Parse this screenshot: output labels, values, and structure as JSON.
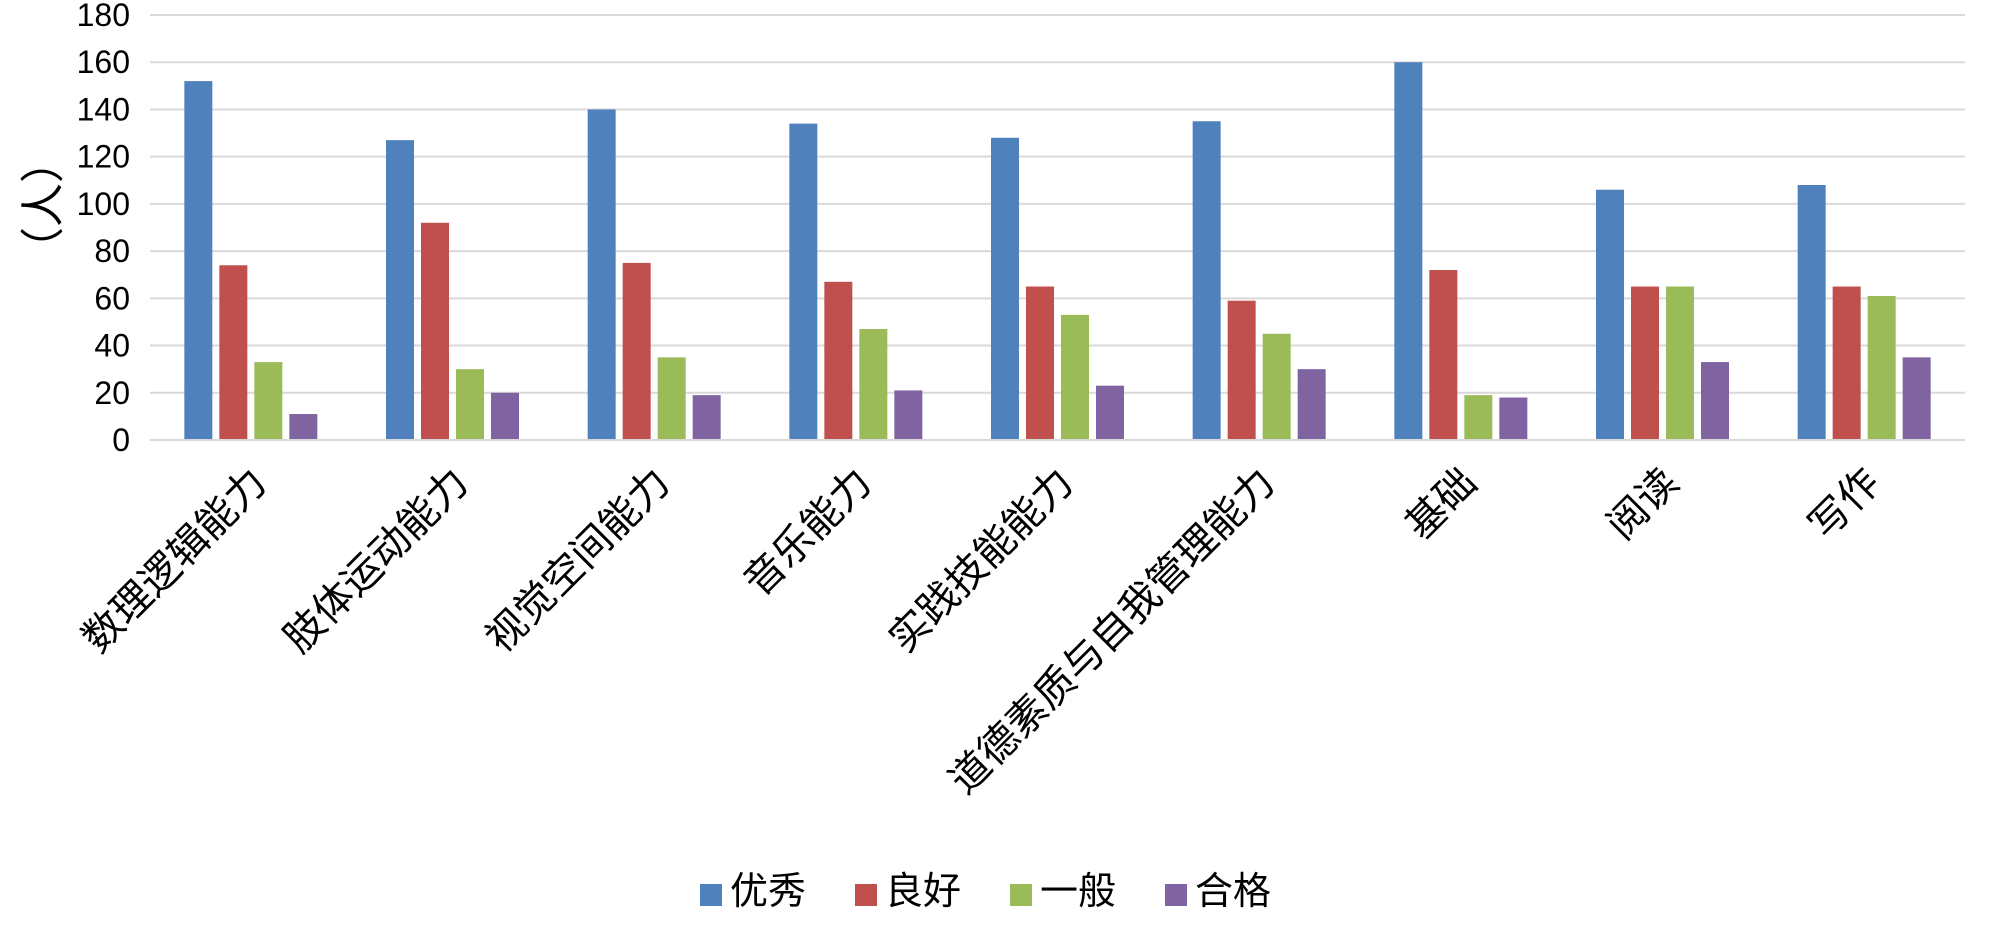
{
  "chart_data": {
    "type": "bar",
    "title": "",
    "xlabel": "",
    "ylabel": "（人）",
    "ylim": [
      0,
      180
    ],
    "ytick_step": 20,
    "grid": true,
    "legend_position": "bottom",
    "categories": [
      "数理逻辑能力",
      "肢体运动能力",
      "视觉空间能力",
      "音乐能力",
      "实践技能能力",
      "道德素质与自我管理能力",
      "基础",
      "阅读",
      "写作"
    ],
    "series": [
      {
        "name": "优秀",
        "color": "#4F81BD",
        "values": [
          152,
          127,
          140,
          134,
          128,
          135,
          160,
          106,
          108
        ]
      },
      {
        "name": "良好",
        "color": "#C0504D",
        "values": [
          74,
          92,
          75,
          67,
          65,
          59,
          72,
          65,
          65
        ]
      },
      {
        "name": "一般",
        "color": "#9BBB59",
        "values": [
          33,
          30,
          35,
          47,
          53,
          45,
          19,
          65,
          61
        ]
      },
      {
        "name": "合格",
        "color": "#8064A2",
        "values": [
          11,
          20,
          19,
          21,
          23,
          30,
          18,
          33,
          35
        ]
      }
    ]
  }
}
